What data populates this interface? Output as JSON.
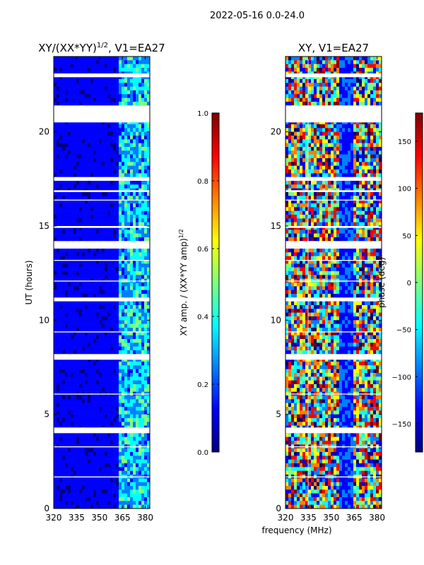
{
  "suptitle": "2022-05-16 0.0-24.0",
  "xlabel": "frequency (MHz)",
  "chart_data": [
    {
      "type": "heatmap",
      "title": "XY/(XX*YY)",
      "title_sup": "1/2",
      "title_rest": ", V1=EA27",
      "ylabel": "UT (hours)",
      "xlim": [
        320,
        383
      ],
      "ylim": [
        0,
        24
      ],
      "xticks": [
        320,
        335,
        350,
        365,
        380
      ],
      "yticks": [
        0,
        5,
        10,
        15,
        20
      ],
      "bright_band_mhz": [
        363,
        383
      ],
      "colorbar": {
        "label": "XY amp. / (XX*YY amp)",
        "label_sup": "1/2",
        "vmin": 0.0,
        "vmax": 1.0,
        "ticks": [
          "0.0",
          "0.2",
          "0.4",
          "0.6",
          "0.8",
          "1.0"
        ]
      }
    },
    {
      "type": "heatmap",
      "title": "XY, V1=EA27",
      "ylabel": "phase (deg)",
      "xlim": [
        320,
        383
      ],
      "ylim": [
        0,
        24
      ],
      "xticks": [
        320,
        335,
        350,
        365,
        380
      ],
      "yticks": [
        0,
        5,
        10,
        15,
        20
      ],
      "colorbar": {
        "vmin": -180,
        "vmax": 180,
        "ticks": [
          "150",
          "100",
          "50",
          "0",
          "−50",
          "−100",
          "−150"
        ]
      }
    }
  ],
  "flagged_gaps_ut": [
    [
      21.4,
      20.5
    ],
    [
      17.6,
      17.4
    ],
    [
      14.2,
      13.8
    ],
    [
      11.2,
      11.0
    ],
    [
      8.2,
      7.9
    ],
    [
      4.3,
      4.0
    ],
    [
      23.1,
      22.9
    ],
    [
      16.9,
      16.8
    ],
    [
      16.4,
      16.35
    ],
    [
      15.0,
      14.9
    ],
    [
      13.2,
      13.15
    ],
    [
      12.1,
      12.05
    ],
    [
      9.4,
      9.35
    ],
    [
      6.1,
      6.05
    ],
    [
      3.3,
      3.25
    ],
    [
      1.7,
      1.65
    ]
  ],
  "colors": {
    "axis": "#000000",
    "background": "#ffffff",
    "amp_low": "#00008f",
    "jet": [
      "#00007f",
      "#0000ff",
      "#007fff",
      "#00ffff",
      "#7fff7f",
      "#ffff00",
      "#ff7f00",
      "#ff0000",
      "#7f0000"
    ]
  }
}
